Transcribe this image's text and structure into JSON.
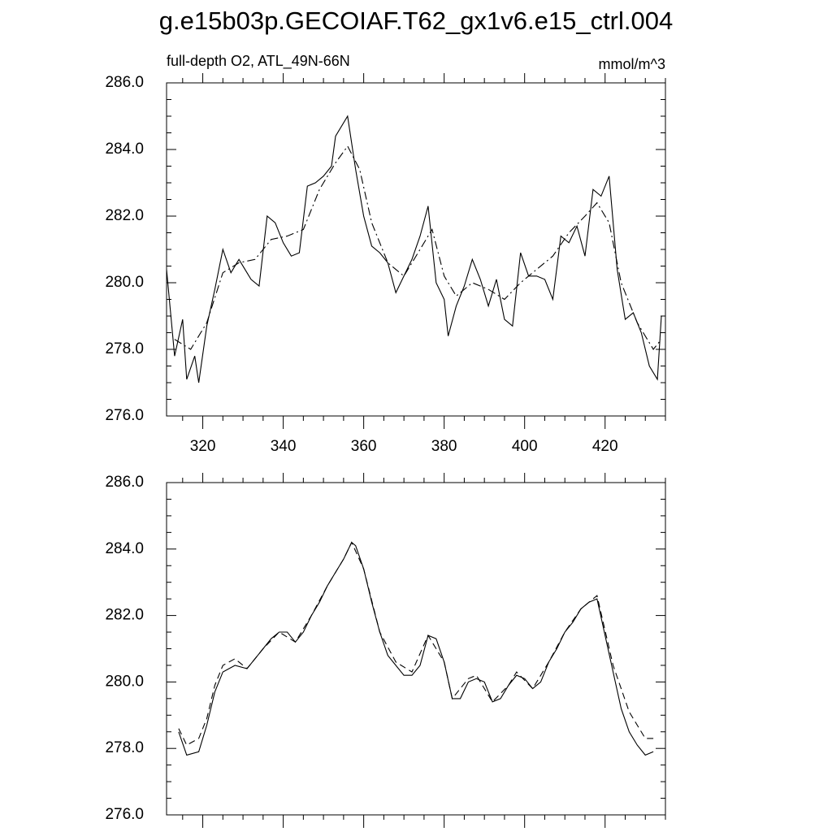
{
  "title": "g.e15b03p.GECOIAF.T62_gx1v6.e15_ctrl.004",
  "chart_data": [
    {
      "type": "line",
      "subtitle": "full-depth O2, ATL_49N-66N",
      "units": "mmol/m^3",
      "xlim": [
        311,
        435
      ],
      "xticks": [
        320,
        340,
        360,
        380,
        400,
        420
      ],
      "ylim": [
        276,
        286
      ],
      "yticks": [
        {
          "value": 276,
          "label": "276.0"
        },
        {
          "value": 278,
          "label": "278.0"
        },
        {
          "value": 280,
          "label": "280.0"
        },
        {
          "value": 282,
          "label": "282.0"
        },
        {
          "value": 284,
          "label": "284.0"
        },
        {
          "value": 286,
          "label": "286.0"
        }
      ],
      "series": [
        {
          "color": "#000000",
          "style": "solid",
          "x": [
            311,
            313,
            315,
            316,
            318,
            319,
            321,
            323,
            325,
            327,
            329,
            331,
            332,
            334,
            336,
            338,
            340,
            342,
            344,
            346,
            348,
            350,
            352,
            353,
            356,
            358,
            360,
            362,
            364,
            366,
            368,
            370,
            372,
            374,
            376,
            378,
            380,
            381,
            383,
            385,
            387,
            389,
            391,
            393,
            395,
            397,
            399,
            401,
            403,
            405,
            407,
            409,
            411,
            413,
            415,
            417,
            419,
            421,
            423,
            425,
            427,
            429,
            431,
            433,
            434
          ],
          "values": [
            280.4,
            277.8,
            278.9,
            277.1,
            277.8,
            277.0,
            278.7,
            279.8,
            281.0,
            280.3,
            280.7,
            280.3,
            280.1,
            279.9,
            282.0,
            281.8,
            281.2,
            280.8,
            280.9,
            282.9,
            283.0,
            283.2,
            283.5,
            284.4,
            285.0,
            283.4,
            282.0,
            281.1,
            280.9,
            280.6,
            279.7,
            280.2,
            280.7,
            281.4,
            282.3,
            280.0,
            279.5,
            278.4,
            279.3,
            279.9,
            280.7,
            280.1,
            279.3,
            280.1,
            278.9,
            278.7,
            280.9,
            280.2,
            280.2,
            280.1,
            279.5,
            281.4,
            281.2,
            281.7,
            280.8,
            282.8,
            282.6,
            283.2,
            280.4,
            278.9,
            279.1,
            278.5,
            277.5,
            277.1,
            279.0
          ]
        },
        {
          "color": "#000000",
          "style": "dashdot",
          "x": [
            313,
            317,
            321,
            325,
            329,
            333,
            337,
            341,
            345,
            349,
            353,
            356,
            359,
            362,
            366,
            370,
            374,
            377,
            380,
            383,
            387,
            391,
            395,
            399,
            403,
            407,
            411,
            415,
            418,
            421,
            424,
            428,
            432,
            434
          ],
          "values": [
            278.3,
            278.0,
            278.8,
            280.3,
            280.6,
            280.7,
            281.3,
            281.4,
            281.6,
            282.8,
            283.6,
            284.1,
            283.4,
            281.8,
            280.6,
            280.2,
            281.0,
            281.6,
            280.2,
            279.6,
            280.0,
            279.8,
            279.5,
            280.0,
            280.4,
            280.8,
            281.5,
            282.0,
            282.4,
            281.8,
            280.0,
            278.8,
            278.0,
            278.3
          ]
        }
      ]
    },
    {
      "type": "line",
      "xlim": [
        311,
        435
      ],
      "xticks": [
        320,
        340,
        360,
        380,
        400,
        420
      ],
      "ylim": [
        276,
        286
      ],
      "yticks": [
        {
          "value": 276,
          "label": "276.0"
        },
        {
          "value": 278,
          "label": "278.0"
        },
        {
          "value": 280,
          "label": "280.0"
        },
        {
          "value": 282,
          "label": "282.0"
        },
        {
          "value": 284,
          "label": "284.0"
        },
        {
          "value": 286,
          "label": "286.0"
        }
      ],
      "series": [
        {
          "color": "#000000",
          "style": "solid",
          "x": [
            314,
            316,
            319,
            321,
            323,
            325,
            328,
            331,
            333,
            335,
            337,
            339,
            341,
            343,
            345,
            347,
            349,
            351,
            353,
            355,
            357,
            358,
            360,
            362,
            364,
            366,
            368,
            370,
            372,
            374,
            376,
            378,
            380,
            382,
            384,
            386,
            388,
            390,
            392,
            394,
            396,
            398,
            400,
            402,
            404,
            406,
            408,
            410,
            412,
            414,
            416,
            418,
            420,
            422,
            424,
            426,
            428,
            430,
            432
          ],
          "values": [
            278.5,
            277.8,
            277.9,
            278.7,
            279.7,
            280.3,
            280.5,
            280.4,
            280.7,
            281.0,
            281.3,
            281.5,
            281.5,
            281.2,
            281.5,
            282.0,
            282.4,
            282.9,
            283.3,
            283.7,
            284.2,
            284.1,
            283.4,
            282.4,
            281.5,
            280.8,
            280.5,
            280.2,
            280.2,
            280.5,
            281.4,
            281.3,
            280.6,
            279.5,
            279.5,
            280.0,
            280.1,
            280.0,
            279.4,
            279.5,
            279.9,
            280.2,
            280.1,
            279.8,
            280.0,
            280.6,
            281.0,
            281.5,
            281.8,
            282.2,
            282.4,
            282.5,
            281.4,
            280.3,
            279.2,
            278.5,
            278.1,
            277.8,
            277.9
          ]
        },
        {
          "color": "#000000",
          "style": "dashed",
          "x": [
            314,
            316,
            319,
            321,
            323,
            325,
            328,
            331,
            335,
            339,
            343,
            347,
            351,
            355,
            357,
            360,
            364,
            368,
            372,
            376,
            380,
            382,
            386,
            388,
            392,
            396,
            398,
            402,
            406,
            410,
            414,
            418,
            422,
            426,
            430,
            432
          ],
          "values": [
            278.6,
            278.1,
            278.3,
            278.9,
            279.9,
            280.5,
            280.7,
            280.4,
            281.0,
            281.5,
            281.2,
            282.0,
            282.9,
            283.7,
            284.2,
            283.4,
            281.5,
            280.6,
            280.3,
            281.4,
            280.6,
            279.5,
            280.1,
            280.2,
            279.4,
            279.9,
            280.3,
            279.8,
            280.6,
            281.5,
            282.2,
            282.6,
            280.5,
            279.1,
            278.3,
            278.3
          ]
        }
      ]
    }
  ]
}
